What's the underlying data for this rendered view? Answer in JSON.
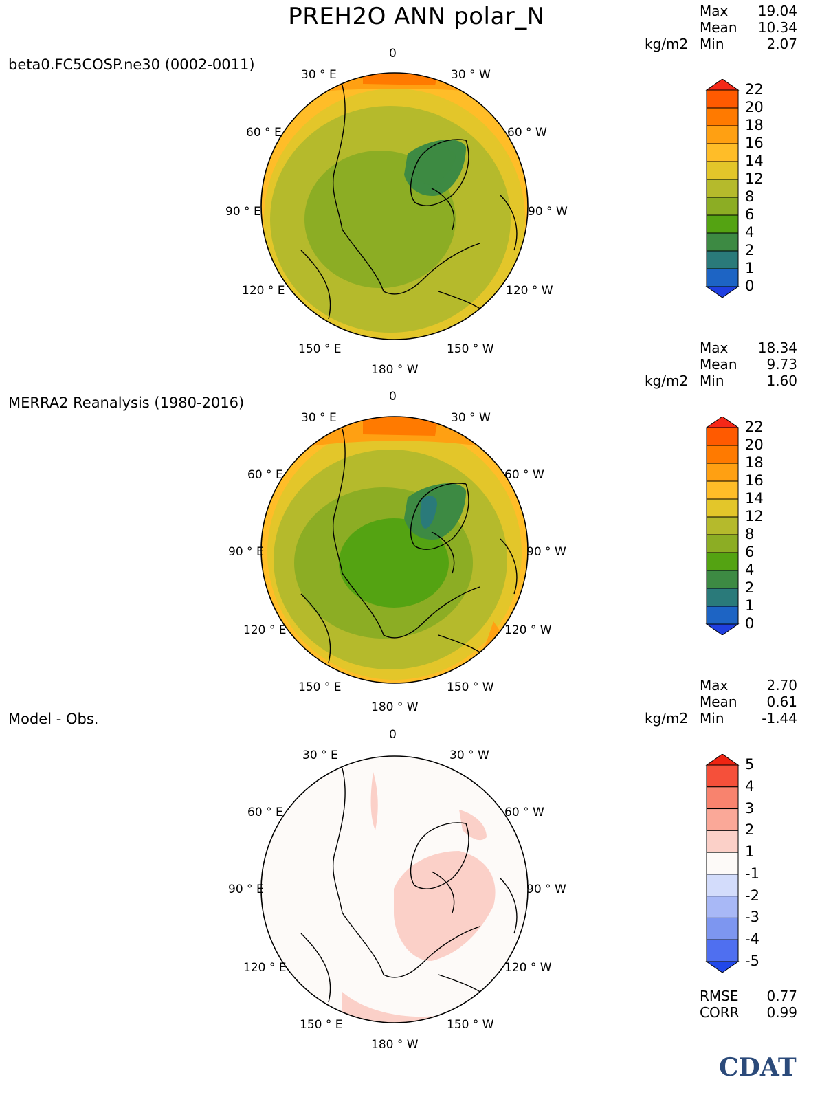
{
  "title": "PREH2O ANN polar_N",
  "colors": {
    "coast": "#000000",
    "bg": "#ffffff",
    "logo": "#2b4a7a"
  },
  "panels": [
    {
      "id": "model",
      "label": "beta0.FC5COSP.ne30 (0002-0011)",
      "stats": {
        "max_label": "Max",
        "max": "19.04",
        "mean_label": "Mean",
        "mean": "10.34",
        "min_label": "Min",
        "min": "2.07",
        "unit": "kg/m2"
      },
      "colorbar": [
        "22",
        "20",
        "18",
        "16",
        "14",
        "12",
        "8",
        "6",
        "4",
        "2",
        "1",
        "0"
      ],
      "colorbar_colors": [
        "#ff5a00",
        "#ff7a00",
        "#ffa012",
        "#ffbd28",
        "#e3c62a",
        "#b5ba2c",
        "#8cad24",
        "#54a312",
        "#3d8a43",
        "#2a7a7a",
        "#1d64c4"
      ],
      "arrow_top_color": "#f52818",
      "arrow_bottom_color": "#1f3fe0"
    },
    {
      "id": "obs",
      "label": "MERRA2 Reanalysis (1980-2016)",
      "stats": {
        "max_label": "Max",
        "max": "18.34",
        "mean_label": "Mean",
        "mean": "9.73",
        "min_label": "Min",
        "min": "1.60",
        "unit": "kg/m2"
      },
      "colorbar": [
        "22",
        "20",
        "18",
        "16",
        "14",
        "12",
        "8",
        "6",
        "4",
        "2",
        "1",
        "0"
      ],
      "colorbar_colors": [
        "#ff5a00",
        "#ff7a00",
        "#ffa012",
        "#ffbd28",
        "#e3c62a",
        "#b5ba2c",
        "#8cad24",
        "#54a312",
        "#3d8a43",
        "#2a7a7a",
        "#1d64c4"
      ],
      "arrow_top_color": "#f52818",
      "arrow_bottom_color": "#1f3fe0"
    },
    {
      "id": "diff",
      "label": "Model - Obs.",
      "stats": {
        "max_label": "Max",
        "max": "2.70",
        "mean_label": "Mean",
        "mean": "0.61",
        "min_label": "Min",
        "min": "-1.44",
        "unit": "kg/m2"
      },
      "colorbar": [
        "5",
        "4",
        "3",
        "2",
        "1",
        "-1",
        "-2",
        "-3",
        "-4",
        "-5"
      ],
      "colorbar_colors": [
        "#f5503a",
        "#f8836e",
        "#faa898",
        "#fbd0c8",
        "#fdfaf8",
        "#d3dcfb",
        "#a8b8f6",
        "#7d96f0",
        "#4f6ff0"
      ],
      "arrow_top_color": "#ee2412",
      "arrow_bottom_color": "#2148ea",
      "extra": {
        "rmse_label": "RMSE",
        "rmse": "0.77",
        "corr_label": "CORR",
        "corr": "0.99"
      }
    }
  ],
  "longitude_labels": {
    "top": "0",
    "tl": "30 ° E",
    "tr": "30 ° W",
    "ul": "60 ° E",
    "ur": "60 ° W",
    "ml": "90 ° E",
    "mr": "90 ° W",
    "ll": "120 ° E",
    "lr": "120 ° W",
    "bl": "150 ° E",
    "br": "150 ° W",
    "bottom": "180 ° W"
  },
  "logo_text": "CDAT"
}
